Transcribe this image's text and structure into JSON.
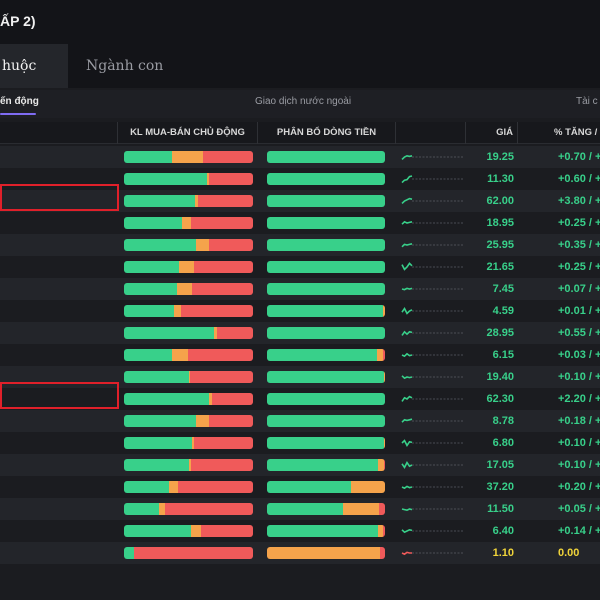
{
  "title": "ẤP 2)",
  "tabs": [
    {
      "label": "huộc ngành",
      "active": true
    },
    {
      "label": "Ngành con",
      "active": false
    }
  ],
  "subtabs": [
    {
      "label": "ến động",
      "active": true
    },
    {
      "label": "Giao dịch nước ngoài",
      "active": false
    },
    {
      "label": "Tài c",
      "active": false
    }
  ],
  "columns": {
    "kl": "KL MUA-BÁN CHỦ ĐỘNG",
    "pb": "PHÂN BỔ DÒNG TIỀN",
    "price": "GIÁ",
    "change": "% TĂNG / "
  },
  "colors": {
    "buy": "#38d08a",
    "neutral": "#f5a34b",
    "sell": "#f05a5a",
    "up": "#38d08a",
    "ref": "#f0d43a",
    "highlight": "#e0202a"
  },
  "rows": [
    {
      "price": "19.25",
      "change": "+0.70 / +",
      "tone": "green",
      "highlight": false,
      "kl": [
        0.37,
        0.24,
        0.39
      ],
      "pb": [
        1,
        0,
        0
      ],
      "spark": [
        0.3,
        0.5,
        0.6,
        0.55,
        0.6
      ]
    },
    {
      "price": "11.30",
      "change": "+0.60 / +",
      "tone": "green",
      "highlight": false,
      "kl": [
        0.64,
        0.02,
        0.34
      ],
      "pb": [
        1,
        0,
        0
      ],
      "spark": [
        0.2,
        0.4,
        0.45,
        0.7,
        0.75
      ]
    },
    {
      "price": "62.00",
      "change": "+3.80 / +",
      "tone": "green",
      "highlight": true,
      "kl": [
        0.55,
        0.02,
        0.43
      ],
      "pb": [
        1,
        0,
        0
      ],
      "spark": [
        0.3,
        0.5,
        0.6,
        0.7,
        0.65
      ]
    },
    {
      "price": "18.95",
      "change": "+0.25 / +",
      "tone": "green",
      "highlight": false,
      "kl": [
        0.45,
        0.07,
        0.48
      ],
      "pb": [
        1,
        0,
        0
      ],
      "spark": [
        0.4,
        0.6,
        0.5,
        0.55,
        0.6
      ]
    },
    {
      "price": "25.95",
      "change": "+0.35 / +",
      "tone": "green",
      "highlight": false,
      "kl": [
        0.56,
        0.1,
        0.34
      ],
      "pb": [
        1,
        0,
        0
      ],
      "spark": [
        0.35,
        0.55,
        0.5,
        0.55,
        0.6
      ]
    },
    {
      "price": "21.65",
      "change": "+0.25 / +",
      "tone": "green",
      "highlight": false,
      "kl": [
        0.43,
        0.11,
        0.46
      ],
      "pb": [
        1,
        0,
        0
      ],
      "spark": [
        0.7,
        0.3,
        0.5,
        0.8,
        0.6
      ]
    },
    {
      "price": "7.45",
      "change": "+0.07 / +",
      "tone": "green",
      "highlight": false,
      "kl": [
        0.41,
        0.12,
        0.47
      ],
      "pb": [
        1,
        0,
        0
      ],
      "spark": [
        0.5,
        0.45,
        0.55,
        0.5,
        0.55
      ]
    },
    {
      "price": "4.59",
      "change": "+0.01 / +",
      "tone": "green",
      "highlight": false,
      "kl": [
        0.39,
        0.05,
        0.56
      ],
      "pb": [
        0.98,
        0.02,
        0
      ],
      "spark": [
        0.4,
        0.7,
        0.3,
        0.5,
        0.6
      ]
    },
    {
      "price": "28.95",
      "change": "+0.55 / +",
      "tone": "green",
      "highlight": false,
      "kl": [
        0.7,
        0.02,
        0.28
      ],
      "pb": [
        1,
        0,
        0
      ],
      "spark": [
        0.3,
        0.6,
        0.4,
        0.6,
        0.55
      ]
    },
    {
      "price": "6.15",
      "change": "+0.03 / +",
      "tone": "green",
      "highlight": false,
      "kl": [
        0.37,
        0.13,
        0.5
      ],
      "pb": [
        0.93,
        0.05,
        0.02
      ],
      "spark": [
        0.5,
        0.4,
        0.6,
        0.45,
        0.5
      ]
    },
    {
      "price": "19.40",
      "change": "+0.10 / +",
      "tone": "green",
      "highlight": false,
      "kl": [
        0.5,
        0.01,
        0.49
      ],
      "pb": [
        0.99,
        0.01,
        0
      ],
      "spark": [
        0.6,
        0.4,
        0.5,
        0.45,
        0.5
      ]
    },
    {
      "price": "62.30",
      "change": "+2.20 / +",
      "tone": "green",
      "highlight": true,
      "kl": [
        0.66,
        0.02,
        0.32
      ],
      "pb": [
        1,
        0,
        0
      ],
      "spark": [
        0.3,
        0.6,
        0.5,
        0.7,
        0.6
      ]
    },
    {
      "price": "8.78",
      "change": "+0.18 / +",
      "tone": "green",
      "highlight": false,
      "kl": [
        0.56,
        0.1,
        0.34
      ],
      "pb": [
        1,
        0,
        0
      ],
      "spark": [
        0.4,
        0.6,
        0.55,
        0.6,
        0.65
      ]
    },
    {
      "price": "6.80",
      "change": "+0.10 / +",
      "tone": "green",
      "highlight": false,
      "kl": [
        0.53,
        0.01,
        0.46
      ],
      "pb": [
        0.99,
        0.01,
        0
      ],
      "spark": [
        0.5,
        0.7,
        0.3,
        0.6,
        0.55
      ]
    },
    {
      "price": "17.05",
      "change": "+0.10 / +",
      "tone": "green",
      "highlight": false,
      "kl": [
        0.5,
        0.02,
        0.48
      ],
      "pb": [
        0.94,
        0.05,
        0.01
      ],
      "spark": [
        0.6,
        0.3,
        0.7,
        0.4,
        0.5
      ]
    },
    {
      "price": "37.20",
      "change": "+0.20 / +",
      "tone": "green",
      "highlight": false,
      "kl": [
        0.35,
        0.07,
        0.58
      ],
      "pb": [
        0.71,
        0.29,
        0
      ],
      "spark": [
        0.5,
        0.4,
        0.55,
        0.45,
        0.5
      ]
    },
    {
      "price": "11.50",
      "change": "+0.05 / +",
      "tone": "green",
      "highlight": false,
      "kl": [
        0.27,
        0.05,
        0.68
      ],
      "pb": [
        0.64,
        0.31,
        0.05
      ],
      "spark": [
        0.5,
        0.45,
        0.4,
        0.5,
        0.45
      ]
    },
    {
      "price": "6.40",
      "change": "+0.14 / +",
      "tone": "green",
      "highlight": false,
      "kl": [
        0.52,
        0.08,
        0.4
      ],
      "pb": [
        0.94,
        0.04,
        0.02
      ],
      "spark": [
        0.6,
        0.4,
        0.5,
        0.6,
        0.55
      ]
    },
    {
      "price": "1.10",
      "change": "0.00",
      "tone": "yellow",
      "highlight": false,
      "kl": [
        0.08,
        0,
        0.92
      ],
      "pb": [
        0,
        0.96,
        0.04
      ],
      "spark": [
        0.5,
        0.4,
        0.55,
        0.5,
        0.5
      ]
    }
  ]
}
